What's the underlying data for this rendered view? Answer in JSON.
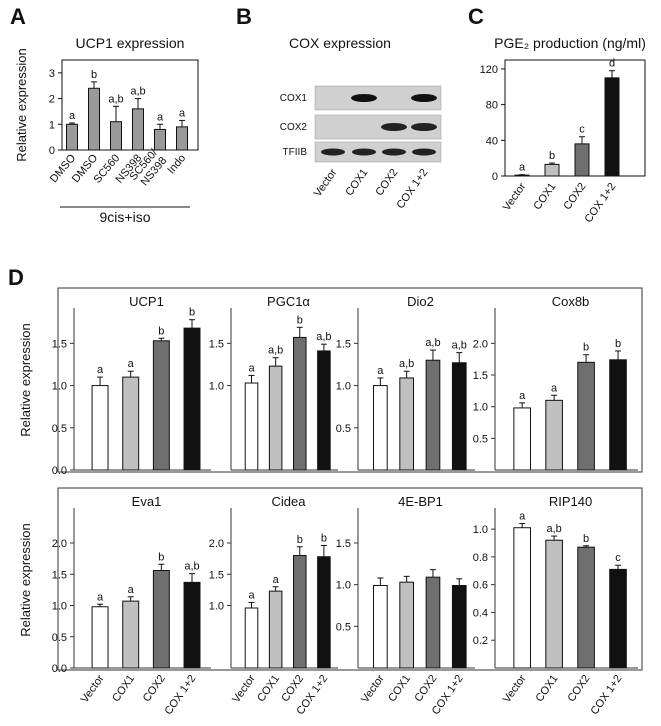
{
  "panels": {
    "a": "A",
    "b": "B",
    "c": "C",
    "d": "D"
  },
  "colors": {
    "white": "#ffffff",
    "lightgray": "#c0c0c0",
    "darkgray": "#6f6f6f",
    "black": "#111111",
    "gray": "#9a9a9a"
  },
  "blot": {
    "title": "COX expression",
    "rows": [
      "COX1",
      "COX2",
      "TFIIB"
    ],
    "lanes": [
      "Vector",
      "COX1",
      "COX2",
      "COX 1+2"
    ]
  },
  "chart_data": [
    {
      "id": "A",
      "type": "bar",
      "title": "UCP1 expression",
      "ylabel": "Relative expression",
      "ylim": [
        0,
        3.5
      ],
      "yticks": [
        0,
        1,
        2,
        3
      ],
      "categories": [
        "DMSO",
        "DMSO",
        "SC560",
        "NS398",
        "SC560/ NS398",
        "Indo"
      ],
      "values": [
        1.0,
        2.4,
        1.1,
        1.6,
        0.8,
        0.9
      ],
      "errors": [
        0.05,
        0.25,
        0.6,
        0.4,
        0.2,
        0.25
      ],
      "significance": [
        "a",
        "b",
        "a,b",
        "a,b",
        "a",
        "a"
      ],
      "group_label": "9cis+iso"
    },
    {
      "id": "C",
      "type": "bar",
      "title": "PGE₂ production (ng/ml)",
      "ylim": [
        0,
        130
      ],
      "yticks": [
        0,
        40,
        80,
        120
      ],
      "categories": [
        "Vector",
        "COX1",
        "COX2",
        "COX 1+2"
      ],
      "values": [
        1,
        13,
        36,
        110
      ],
      "errors": [
        0.5,
        1.5,
        8,
        8
      ],
      "significance": [
        "a",
        "b",
        "c",
        "d"
      ]
    },
    {
      "id": "D",
      "type": "bar",
      "ylabel": "Relative expression",
      "categories": [
        "Vector",
        "COX1",
        "COX2",
        "COX 1+2"
      ],
      "panels": [
        {
          "title": "UCP1",
          "ylim": [
            0,
            1.8
          ],
          "yticks": [
            0.0,
            0.5,
            1.0,
            1.5
          ],
          "tick_labels": [
            "0.0",
            "0.5",
            "1.0",
            "1.5"
          ],
          "values": [
            1.0,
            1.1,
            1.53,
            1.68
          ],
          "errors": [
            0.1,
            0.07,
            0.03,
            0.1
          ],
          "significance": [
            "a",
            "a",
            "b",
            "b"
          ]
        },
        {
          "title": "PGC1α",
          "ylim": [
            0,
            1.8
          ],
          "yticks": [
            1.0,
            1.5
          ],
          "tick_labels": [
            "1.0",
            "1.5"
          ],
          "values": [
            1.03,
            1.23,
            1.57,
            1.41
          ],
          "errors": [
            0.09,
            0.1,
            0.12,
            0.08
          ],
          "significance": [
            "a",
            "a,b",
            "b",
            "a,b"
          ]
        },
        {
          "title": "Dio2",
          "ylim": [
            0,
            1.8
          ],
          "yticks": [
            0.5,
            1.0,
            1.5
          ],
          "tick_labels": [
            "0.5",
            "1.0",
            "1.5"
          ],
          "values": [
            1.0,
            1.09,
            1.3,
            1.27
          ],
          "errors": [
            0.09,
            0.08,
            0.12,
            0.12
          ],
          "significance": [
            "a",
            "a,b",
            "a,b",
            "a,b"
          ]
        },
        {
          "title": "Cox8b",
          "ylim": [
            0,
            2.4
          ],
          "yticks": [
            0.5,
            1.0,
            1.5,
            2.0
          ],
          "tick_labels": [
            "0.5",
            "1.0",
            "1.5",
            "2.0"
          ],
          "values": [
            0.98,
            1.1,
            1.7,
            1.74
          ],
          "errors": [
            0.08,
            0.08,
            0.12,
            0.14
          ],
          "significance": [
            "a",
            "a",
            "b",
            "b"
          ]
        },
        {
          "title": "Eva1",
          "ylim": [
            0,
            2.4
          ],
          "yticks": [
            0.0,
            0.5,
            1.0,
            1.5,
            2.0
          ],
          "tick_labels": [
            "0.0",
            "0.5",
            "1.0",
            "1.5",
            "2.0"
          ],
          "values": [
            0.98,
            1.07,
            1.56,
            1.37
          ],
          "errors": [
            0.04,
            0.07,
            0.1,
            0.14
          ],
          "significance": [
            "a",
            "a",
            "b",
            "a,b"
          ]
        },
        {
          "title": "Cidea",
          "ylim": [
            0,
            2.4
          ],
          "yticks": [
            1.0,
            1.5,
            2.0
          ],
          "tick_labels": [
            "1.0",
            "1.5",
            "2.0"
          ],
          "values": [
            0.96,
            1.23,
            1.8,
            1.78
          ],
          "errors": [
            0.09,
            0.07,
            0.14,
            0.18
          ],
          "significance": [
            "a",
            "a",
            "b",
            "b"
          ]
        },
        {
          "title": "4E-BP1",
          "ylim": [
            0,
            1.8
          ],
          "yticks": [
            0.5,
            1.0,
            1.5
          ],
          "tick_labels": [
            "0.5",
            "1.0",
            "1.5"
          ],
          "values": [
            0.99,
            1.03,
            1.09,
            0.99
          ],
          "errors": [
            0.09,
            0.07,
            0.09,
            0.08
          ],
          "significance": [
            "",
            "",
            "",
            ""
          ]
        },
        {
          "title": "RIP140",
          "ylim": [
            0,
            1.08
          ],
          "yticks": [
            0.2,
            0.4,
            0.6,
            0.8,
            1.0
          ],
          "tick_labels": [
            "0.2",
            "0.4",
            "0.6",
            "0.8",
            "1.0"
          ],
          "values": [
            1.01,
            0.92,
            0.87,
            0.71
          ],
          "errors": [
            0.03,
            0.03,
            0.01,
            0.03
          ],
          "significance": [
            "a",
            "a,b",
            "b",
            "c"
          ]
        }
      ]
    }
  ]
}
